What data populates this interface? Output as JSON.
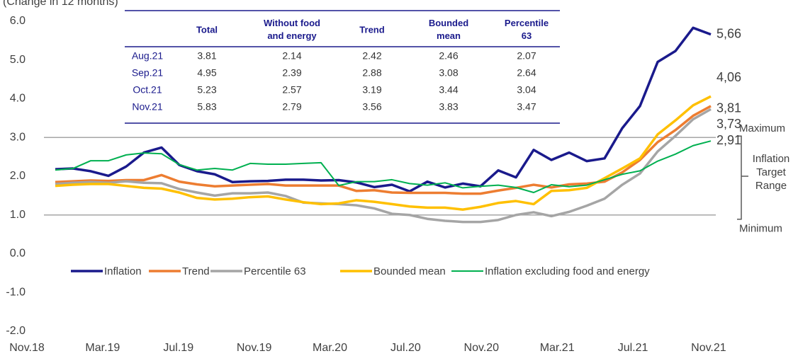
{
  "chart_data": {
    "type": "line",
    "subtitle": "(Change in 12 months)",
    "categories": [
      "Nov.18",
      null,
      null,
      null,
      "Mar.19",
      null,
      null,
      null,
      "Jul.19",
      null,
      null,
      null,
      "Nov.19",
      null,
      null,
      null,
      "Mar.20",
      null,
      null,
      null,
      "Jul.20",
      null,
      null,
      null,
      "Nov.20",
      null,
      null,
      null,
      "Mar.21",
      null,
      null,
      null,
      "Jul.21",
      null,
      null,
      null,
      "Nov.21",
      null
    ],
    "ylim": [
      -2,
      6
    ],
    "yticks": [
      {
        "value": -2,
        "label": "-2.0"
      },
      {
        "value": -1,
        "label": "-1.0"
      },
      {
        "value": 0,
        "label": "0.0"
      },
      {
        "value": 1,
        "label": "1.0"
      },
      {
        "value": 2,
        "label": "2.0"
      },
      {
        "value": 3,
        "label": "3.0"
      },
      {
        "value": 4,
        "label": "4.0"
      },
      {
        "value": 5,
        "label": "5.0"
      },
      {
        "value": 6,
        "label": "6.0"
      }
    ],
    "target_range": [
      1,
      3
    ],
    "target_labels": {
      "max": "Maximum",
      "min": "Minimum",
      "range": "Inflation Target Range"
    },
    "series": [
      {
        "name": "Inflation",
        "color": "#1a1a8c",
        "label_color": "#2f55d4",
        "width": 3.5,
        "values": [
          2.18,
          2.2,
          2.13,
          2.01,
          2.25,
          2.61,
          2.74,
          2.29,
          2.13,
          2.05,
          1.85,
          1.87,
          1.88,
          1.91,
          1.91,
          1.89,
          1.9,
          1.84,
          1.72,
          1.78,
          1.61,
          1.86,
          1.71,
          1.81,
          1.74,
          2.15,
          1.97,
          2.68,
          2.42,
          2.61,
          2.39,
          2.46,
          3.24,
          3.81,
          4.95,
          5.23,
          5.83,
          5.66
        ],
        "value_labels": [
          null,
          null,
          null,
          null,
          null,
          null,
          null,
          null,
          null,
          null,
          null,
          null,
          null,
          null,
          null,
          null,
          null,
          null,
          null,
          null,
          null,
          null,
          null,
          null,
          null,
          null,
          null,
          null,
          null,
          null,
          null,
          null,
          null,
          null,
          null,
          null,
          null,
          "5,66"
        ]
      },
      {
        "name": "Trend",
        "color": "#ed7d31",
        "label_color": "#a0522d",
        "width": 3.5,
        "values": [
          1.85,
          1.87,
          1.89,
          1.88,
          1.9,
          1.9,
          2.03,
          1.86,
          1.79,
          1.74,
          1.76,
          1.78,
          1.8,
          1.76,
          1.76,
          1.76,
          1.76,
          1.62,
          1.64,
          1.58,
          1.57,
          1.57,
          1.57,
          1.55,
          1.55,
          1.63,
          1.7,
          1.78,
          1.71,
          1.79,
          1.81,
          1.86,
          2.1,
          2.42,
          2.88,
          3.19,
          3.56,
          3.81
        ],
        "value_labels": [
          null,
          null,
          null,
          null,
          null,
          null,
          null,
          null,
          null,
          null,
          null,
          null,
          null,
          null,
          null,
          null,
          null,
          null,
          null,
          null,
          null,
          null,
          null,
          null,
          null,
          null,
          null,
          null,
          null,
          null,
          null,
          null,
          null,
          null,
          null,
          null,
          null,
          "3,81"
        ]
      },
      {
        "name": "Percentile 63",
        "color": "#a5a5a5",
        "label_color": "#595959",
        "width": 3.5,
        "values": [
          1.8,
          1.83,
          1.85,
          1.83,
          1.87,
          1.83,
          1.82,
          1.67,
          1.58,
          1.5,
          1.56,
          1.56,
          1.58,
          1.49,
          1.32,
          1.3,
          1.28,
          1.25,
          1.17,
          1.03,
          1.0,
          0.9,
          0.85,
          0.82,
          0.82,
          0.87,
          1.0,
          1.07,
          0.97,
          1.08,
          1.24,
          1.42,
          1.78,
          2.07,
          2.64,
          3.04,
          3.47,
          3.73
        ],
        "value_labels": [
          null,
          null,
          null,
          null,
          null,
          null,
          null,
          null,
          null,
          null,
          null,
          null,
          null,
          null,
          null,
          null,
          null,
          null,
          null,
          null,
          null,
          null,
          null,
          null,
          null,
          null,
          null,
          null,
          null,
          null,
          null,
          null,
          null,
          null,
          null,
          null,
          null,
          "3,73"
        ]
      },
      {
        "name": "Bounded mean",
        "color": "#ffc000",
        "label_color": "#a08000",
        "width": 3.5,
        "values": [
          1.75,
          1.78,
          1.8,
          1.8,
          1.75,
          1.7,
          1.68,
          1.58,
          1.44,
          1.4,
          1.42,
          1.46,
          1.48,
          1.4,
          1.33,
          1.28,
          1.3,
          1.38,
          1.34,
          1.28,
          1.22,
          1.19,
          1.19,
          1.14,
          1.21,
          1.31,
          1.36,
          1.28,
          1.62,
          1.64,
          1.7,
          1.95,
          2.2,
          2.46,
          3.08,
          3.44,
          3.83,
          4.06
        ],
        "value_labels": [
          null,
          null,
          null,
          null,
          null,
          null,
          null,
          null,
          null,
          null,
          null,
          null,
          null,
          null,
          null,
          null,
          null,
          null,
          null,
          null,
          null,
          null,
          null,
          null,
          null,
          null,
          null,
          null,
          null,
          null,
          null,
          null,
          null,
          null,
          null,
          null,
          null,
          "4,06"
        ]
      },
      {
        "name": "Inflation excluding food and energy",
        "color": "#00b050",
        "label_color": "#3b6e22",
        "width": 2,
        "values": [
          2.16,
          2.2,
          2.4,
          2.4,
          2.55,
          2.6,
          2.58,
          2.3,
          2.16,
          2.2,
          2.16,
          2.33,
          2.31,
          2.31,
          2.33,
          2.35,
          1.76,
          1.86,
          1.86,
          1.91,
          1.81,
          1.77,
          1.83,
          1.7,
          1.74,
          1.77,
          1.71,
          1.58,
          1.78,
          1.73,
          1.77,
          1.91,
          2.05,
          2.14,
          2.39,
          2.57,
          2.79,
          2.91
        ],
        "value_labels": [
          null,
          null,
          null,
          null,
          null,
          null,
          null,
          null,
          null,
          null,
          null,
          null,
          null,
          null,
          null,
          null,
          null,
          null,
          null,
          null,
          null,
          null,
          null,
          null,
          null,
          null,
          null,
          null,
          null,
          null,
          null,
          null,
          null,
          null,
          null,
          null,
          null,
          "2,91"
        ]
      }
    ],
    "table": {
      "headers": [
        "Total",
        "Without food and energy",
        "Trend",
        "Bounded mean",
        "Percentile 63"
      ],
      "rows": [
        {
          "label": "Aug.21",
          "cells": [
            "3.81",
            "2.14",
            "2.42",
            "2.46",
            "2.07"
          ]
        },
        {
          "label": "Sep.21",
          "cells": [
            "4.95",
            "2.39",
            "2.88",
            "3.08",
            "2.64"
          ]
        },
        {
          "label": "Oct.21",
          "cells": [
            "5.23",
            "2.57",
            "3.19",
            "3.44",
            "3.04"
          ]
        },
        {
          "label": "Nov.21",
          "cells": [
            "5.83",
            "2.79",
            "3.56",
            "3.83",
            "3.47"
          ]
        }
      ]
    }
  }
}
